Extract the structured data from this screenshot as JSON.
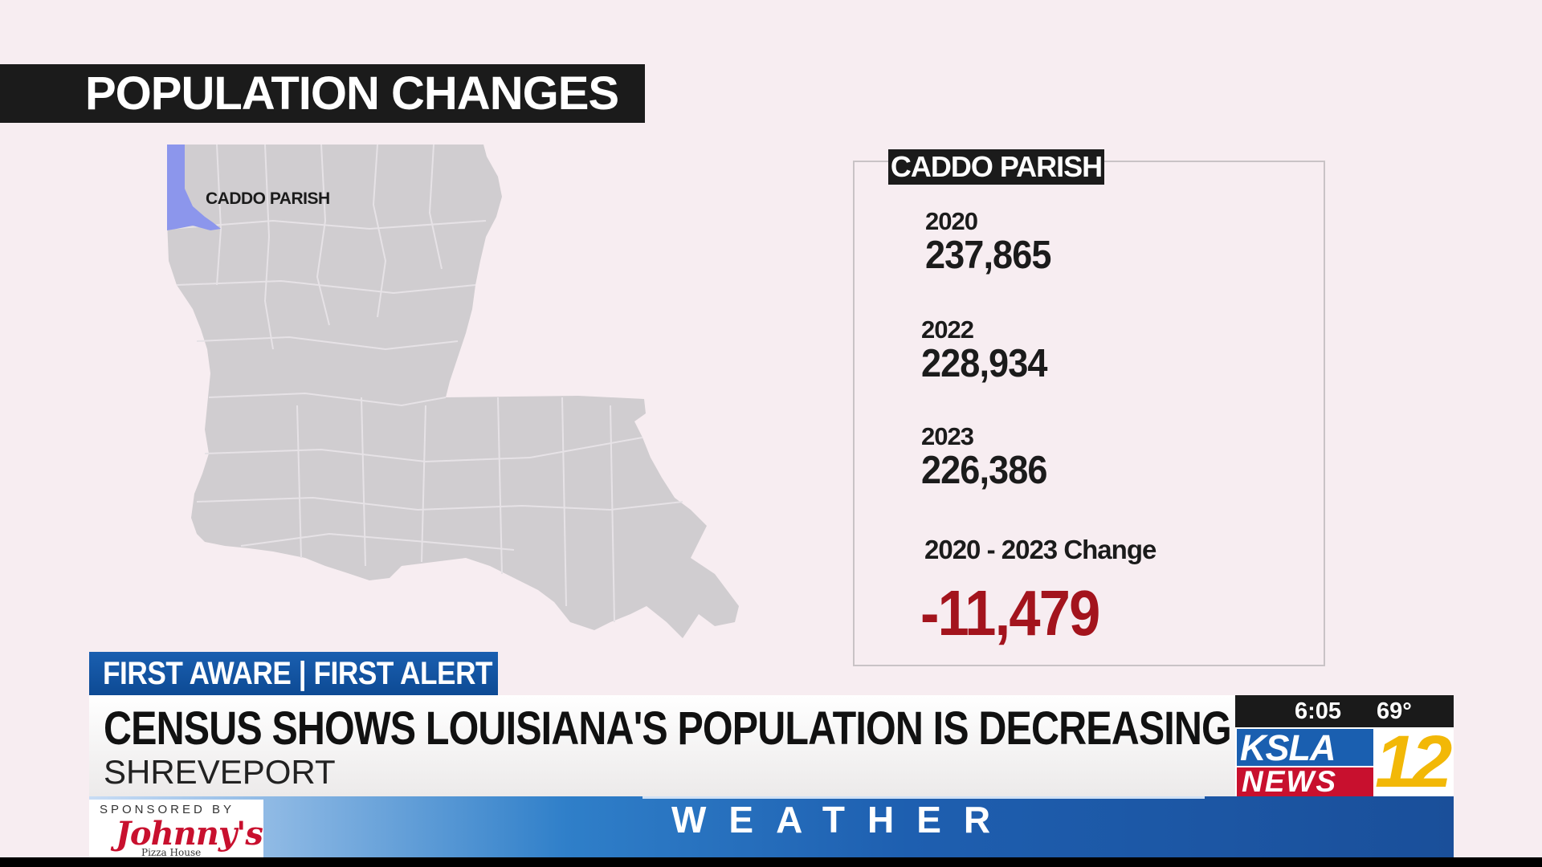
{
  "title": "POPULATION CHANGES",
  "map": {
    "highlighted_parish_label": "CADDO PARISH",
    "highlight_color": "#8c96ec",
    "state_color": "#d0cdd0"
  },
  "panel": {
    "header": "CADDO PARISH",
    "stats": [
      {
        "year": "2020",
        "value": "237,865"
      },
      {
        "year": "2022",
        "value": "228,934"
      },
      {
        "year": "2023",
        "value": "226,386"
      }
    ],
    "change_label": "2020 - 2023 Change",
    "change_value": "-11,479",
    "change_color": "#a3141d"
  },
  "lower_third": {
    "tag": "FIRST AWARE | FIRST ALERT",
    "headline": "CENSUS SHOWS LOUISIANA'S POPULATION IS DECREASING",
    "location": "SHREVEPORT"
  },
  "station": {
    "time": "6:05",
    "temperature": "69°",
    "logo_top": "KSLA",
    "logo_bottom": "NEWS",
    "logo_number": "12"
  },
  "ticker": {
    "sponsored_by": "SPONSORED BY",
    "sponsor_name": "Johnny's",
    "sponsor_sub": "Pizza House",
    "label": "WEATHER"
  }
}
